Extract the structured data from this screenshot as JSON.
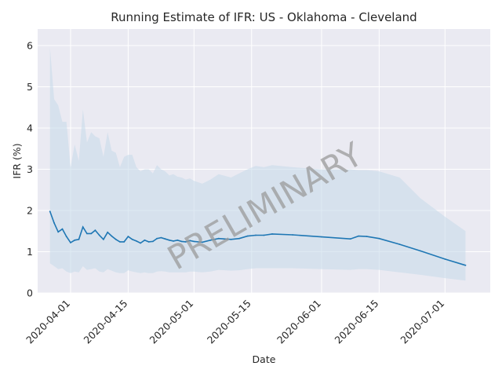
{
  "chart_data": {
    "type": "line",
    "title": "Running Estimate of IFR: US - Oklahoma - Cleveland",
    "xlabel": "Date",
    "ylabel": "IFR (%)",
    "watermark": "PRELIMINARY",
    "x_start": "2020-03-27",
    "x_range": [
      "2020-03-24",
      "2020-07-12"
    ],
    "ylim": [
      0,
      6.4
    ],
    "xticks": [
      "2020-04-01",
      "2020-04-15",
      "2020-05-01",
      "2020-05-15",
      "2020-06-01",
      "2020-06-15",
      "2020-07-01"
    ],
    "yticks": [
      0,
      1,
      2,
      3,
      4,
      5,
      6
    ],
    "grid": true,
    "colors": {
      "background": "#eaeaf2",
      "line": "#1f77b4",
      "band": "#c5d8ea",
      "text": "#262626"
    },
    "series": [
      {
        "name": "",
        "dates": [
          "2020-03-27",
          "2020-03-28",
          "2020-03-29",
          "2020-03-30",
          "2020-03-31",
          "2020-04-01",
          "2020-04-02",
          "2020-04-03",
          "2020-04-04",
          "2020-04-05",
          "2020-04-06",
          "2020-04-07",
          "2020-04-08",
          "2020-04-09",
          "2020-04-10",
          "2020-04-11",
          "2020-04-12",
          "2020-04-13",
          "2020-04-14",
          "2020-04-15",
          "2020-04-16",
          "2020-04-17",
          "2020-04-18",
          "2020-04-19",
          "2020-04-20",
          "2020-04-21",
          "2020-04-22",
          "2020-04-23",
          "2020-04-24",
          "2020-04-25",
          "2020-04-26",
          "2020-04-27",
          "2020-04-28",
          "2020-04-29",
          "2020-04-30",
          "2020-05-01",
          "2020-05-03",
          "2020-05-05",
          "2020-05-07",
          "2020-05-10",
          "2020-05-12",
          "2020-05-14",
          "2020-05-16",
          "2020-05-18",
          "2020-05-20",
          "2020-05-25",
          "2020-06-01",
          "2020-06-08",
          "2020-06-10",
          "2020-06-12",
          "2020-06-15",
          "2020-06-20",
          "2020-06-25",
          "2020-07-01",
          "2020-07-06"
        ],
        "values": [
          1.98,
          1.7,
          1.48,
          1.55,
          1.37,
          1.22,
          1.28,
          1.3,
          1.6,
          1.44,
          1.44,
          1.52,
          1.4,
          1.3,
          1.47,
          1.38,
          1.3,
          1.24,
          1.24,
          1.37,
          1.3,
          1.26,
          1.21,
          1.28,
          1.24,
          1.25,
          1.32,
          1.34,
          1.31,
          1.28,
          1.26,
          1.28,
          1.25,
          1.24,
          1.27,
          1.25,
          1.23,
          1.28,
          1.32,
          1.3,
          1.32,
          1.38,
          1.4,
          1.4,
          1.43,
          1.41,
          1.36,
          1.31,
          1.38,
          1.37,
          1.32,
          1.18,
          1.02,
          0.82,
          0.67
        ],
        "upper": [
          5.95,
          4.7,
          4.55,
          4.15,
          4.15,
          3.05,
          3.6,
          3.2,
          4.45,
          3.65,
          3.9,
          3.8,
          3.75,
          3.3,
          3.9,
          3.45,
          3.4,
          3.05,
          3.3,
          3.35,
          3.35,
          3.05,
          2.95,
          3.0,
          3.0,
          2.9,
          3.1,
          3.0,
          2.95,
          2.85,
          2.88,
          2.82,
          2.8,
          2.75,
          2.78,
          2.72,
          2.65,
          2.75,
          2.88,
          2.8,
          2.9,
          3.0,
          3.08,
          3.05,
          3.1,
          3.05,
          3.0,
          3.0,
          2.98,
          2.98,
          2.95,
          2.8,
          2.3,
          1.85,
          1.5
        ],
        "lower": [
          0.72,
          0.65,
          0.58,
          0.6,
          0.52,
          0.48,
          0.52,
          0.5,
          0.65,
          0.56,
          0.58,
          0.6,
          0.52,
          0.5,
          0.58,
          0.54,
          0.5,
          0.48,
          0.48,
          0.55,
          0.52,
          0.5,
          0.48,
          0.5,
          0.48,
          0.48,
          0.52,
          0.53,
          0.52,
          0.5,
          0.5,
          0.5,
          0.5,
          0.5,
          0.52,
          0.52,
          0.5,
          0.52,
          0.56,
          0.54,
          0.55,
          0.58,
          0.6,
          0.6,
          0.6,
          0.6,
          0.58,
          0.56,
          0.58,
          0.58,
          0.56,
          0.5,
          0.44,
          0.36,
          0.3
        ]
      }
    ]
  }
}
